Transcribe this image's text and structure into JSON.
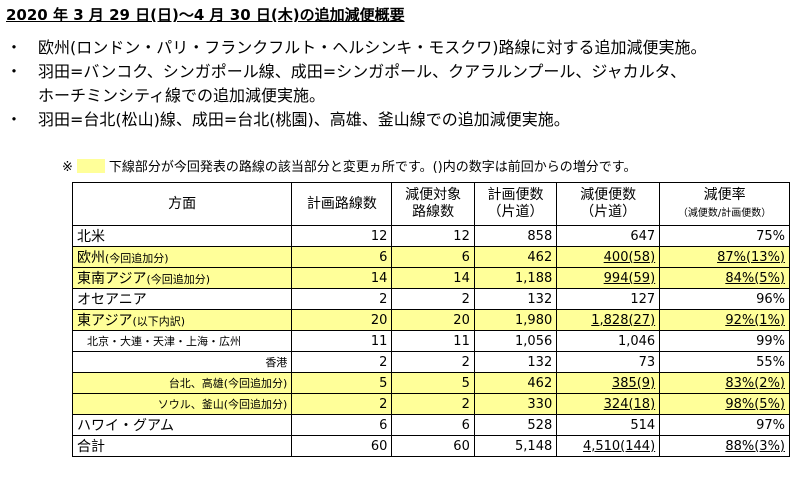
{
  "header": {
    "title": "2020 年 3 月 29 日(日)～4 月 30 日(木)の追加減便概要"
  },
  "bullets": [
    [
      "欧州(ロンドン・パリ・フランクフルト・ヘルシンキ・モスクワ)路線に対する追加減便実施。"
    ],
    [
      "羽田=バンコク、シンガポール線、成田=シンガポール、クアラルンプール、ジャカルタ、",
      "ホーチミンシティ線での追加減便実施。"
    ],
    [
      "羽田=台北(松山)線、成田=台北(桃園)、高雄、釜山線での追加減便実施。"
    ]
  ],
  "note": {
    "mark": "※",
    "text": "下線部分が今回発表の路線の該当部分と変更ヵ所です。()内の数字は前回からの増分です。",
    "swatch_color": "#ffff99"
  },
  "table": {
    "columns": [
      [
        "方面"
      ],
      [
        "計画路線数"
      ],
      [
        "減便対象",
        "路線数"
      ],
      [
        "計画便数",
        "（片道）"
      ],
      [
        "減便便数",
        "（片道）"
      ],
      [
        "減便率",
        "（減便数/計画便数）"
      ]
    ],
    "rows": [
      {
        "name": "北米",
        "cells": [
          "12",
          "12",
          "858",
          "647",
          "75%"
        ]
      },
      {
        "name": "欧州",
        "note": "(今回追加分)",
        "highlight": true,
        "underline": true,
        "cells": [
          "6",
          "6",
          "462",
          "400(58)",
          "87%(13%)"
        ]
      },
      {
        "name": "東南アジア",
        "note": "(今回追加分)",
        "highlight": true,
        "underline": true,
        "cells": [
          "14",
          "14",
          "1,188",
          "994(59)",
          "84%(5%)"
        ]
      },
      {
        "name": "オセアニア",
        "cells": [
          "2",
          "2",
          "132",
          "127",
          "96%"
        ]
      },
      {
        "name": "東アジア",
        "note": "(以下内訳)",
        "highlight": true,
        "underline": true,
        "cells": [
          "20",
          "20",
          "1,980",
          "1,828(27)",
          "92%(1%)"
        ]
      },
      {
        "name": "北京・大連・天津・上海・広州",
        "sub": true,
        "cells": [
          "11",
          "11",
          "1,056",
          "1,046",
          "99%"
        ]
      },
      {
        "name": "香港",
        "sub": true,
        "cells": [
          "2",
          "2",
          "132",
          "73",
          "55%"
        ]
      },
      {
        "name": "台北、高雄",
        "note": "(今回追加分)",
        "sub": true,
        "highlight": true,
        "underline": true,
        "cells": [
          "5",
          "5",
          "462",
          "385(9)",
          "83%(2%)"
        ]
      },
      {
        "name": "ソウル、釜山",
        "note": "(今回追加分)",
        "sub": true,
        "highlight": true,
        "underline": true,
        "cells": [
          "2",
          "2",
          "330",
          "324(18)",
          "98%(5%)"
        ]
      },
      {
        "name": "ハワイ・グアム",
        "cells": [
          "6",
          "6",
          "528",
          "514",
          "97%"
        ]
      },
      {
        "name": "合計",
        "underline": true,
        "cells": [
          "60",
          "60",
          "5,148",
          "4,510(144)",
          "88%(3%)"
        ]
      }
    ]
  }
}
